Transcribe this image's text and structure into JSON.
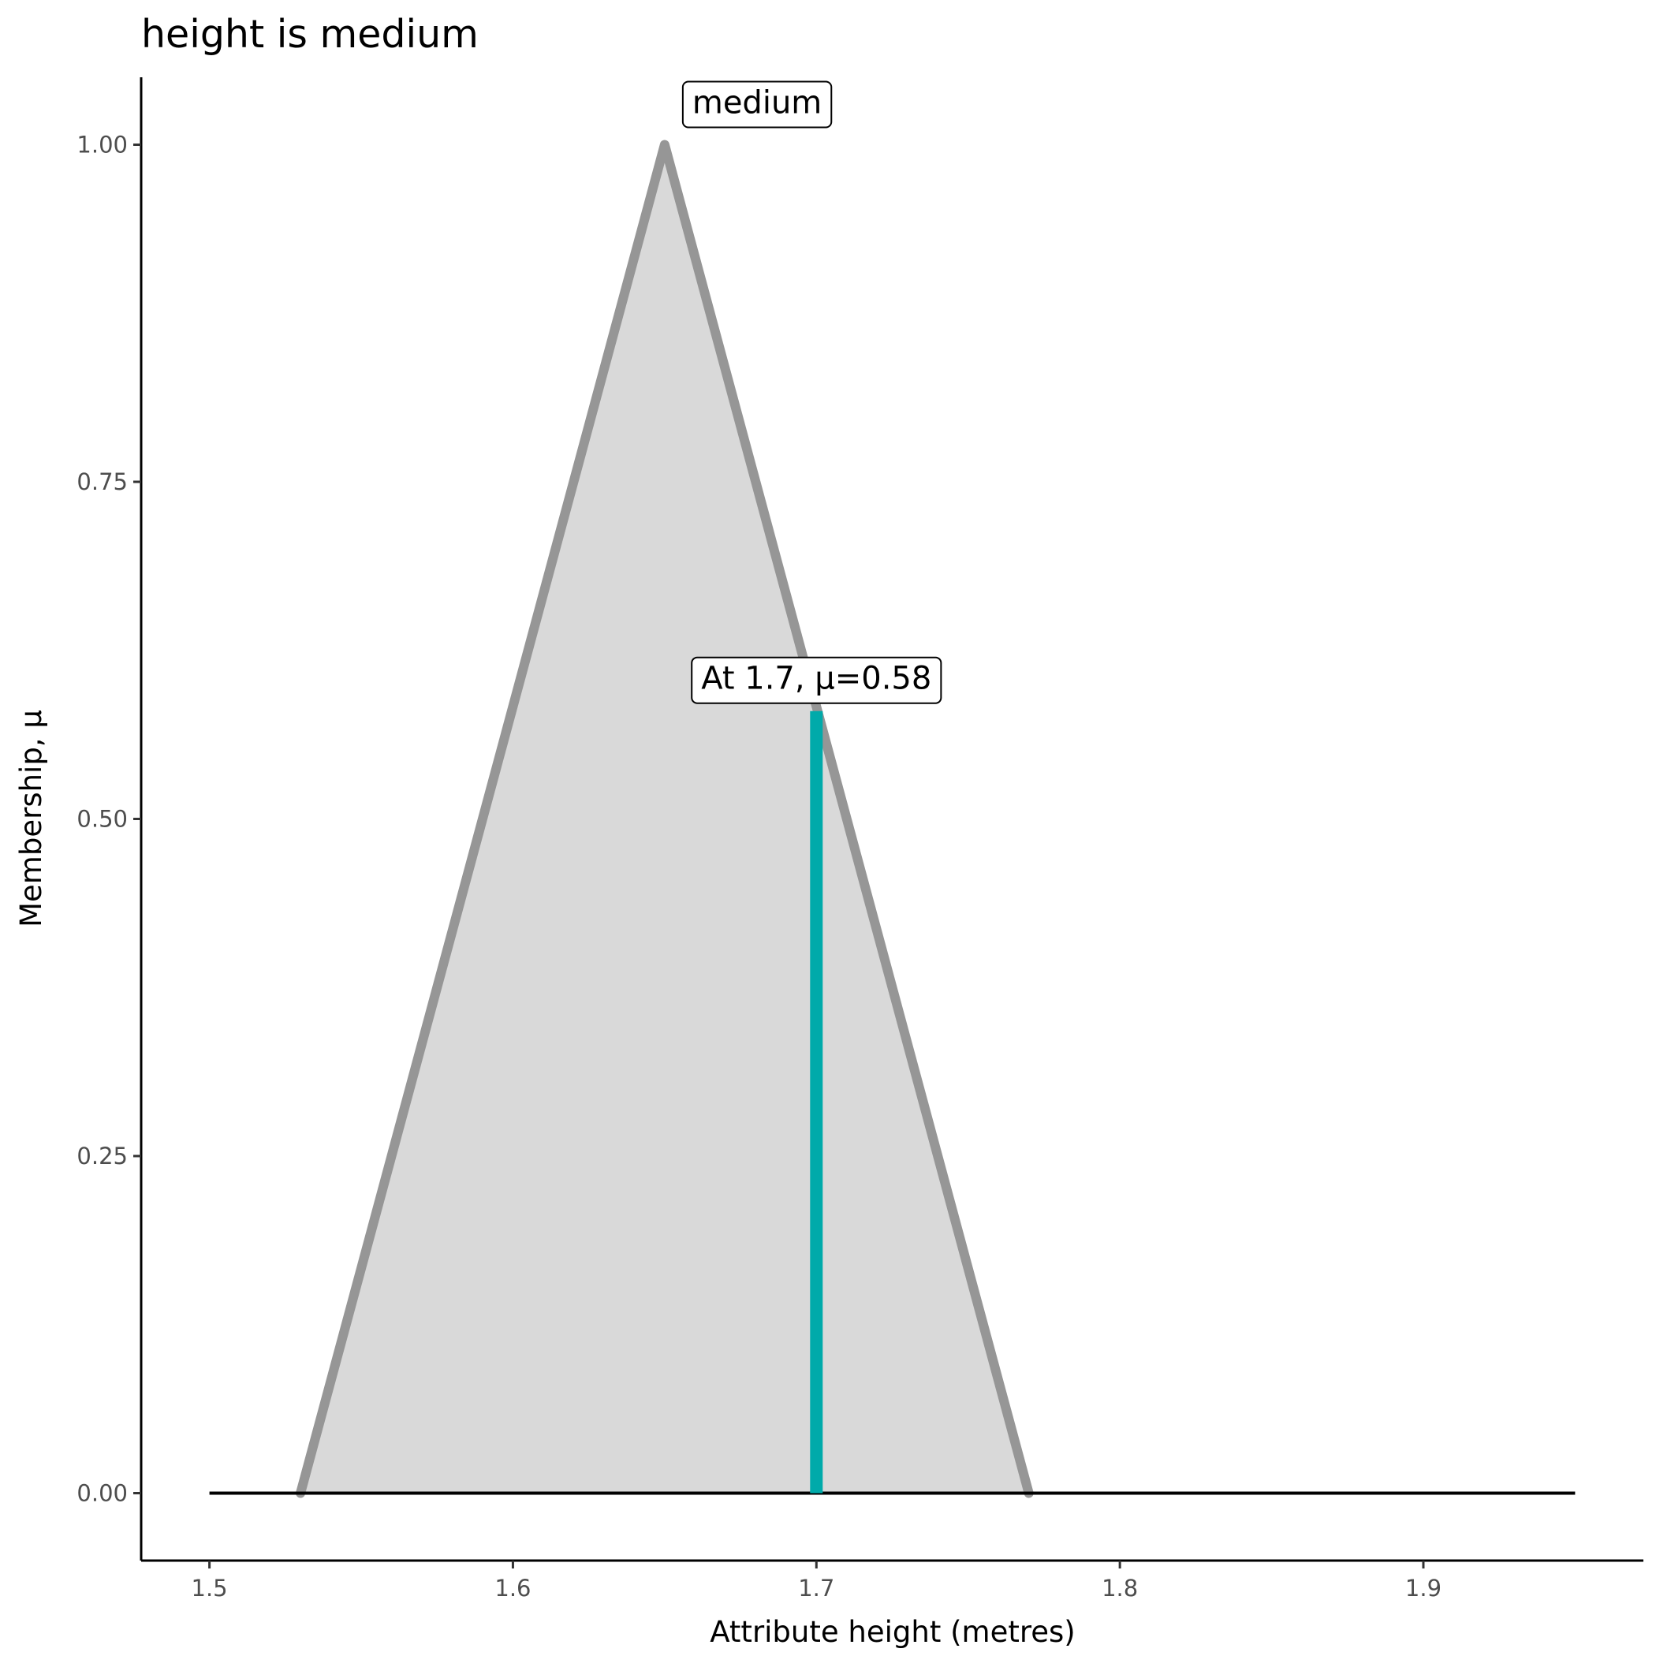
{
  "chart_data": {
    "type": "area",
    "title": "height is medium",
    "xlabel": "Attribute height (metres)",
    "ylabel": "Membership, μ",
    "xlim": [
      1.4775,
      1.9725
    ],
    "ylim": [
      -0.05,
      1.05
    ],
    "x_ticks": [
      "1.5",
      "1.6",
      "1.7",
      "1.8",
      "1.9"
    ],
    "y_ticks": [
      "0.00",
      "0.25",
      "0.50",
      "0.75",
      "1.00"
    ],
    "grid": false,
    "series": [
      {
        "points": [
          [
            1.53,
            0
          ],
          [
            1.65,
            1
          ],
          [
            1.77,
            0
          ]
        ],
        "fill": "#d9d9d9",
        "stroke": "#969696"
      }
    ],
    "baseline": {
      "x": [
        1.5,
        1.95
      ],
      "y": 0,
      "color": "#000000"
    },
    "marker": {
      "x": 1.7,
      "y": 0.58,
      "color": "#00aaaa"
    },
    "annotations": [
      {
        "text": "medium",
        "x": 1.65,
        "y": 1.0
      },
      {
        "text": "At 1.7, μ=0.58",
        "x": 1.7,
        "y": 0.58
      }
    ]
  }
}
